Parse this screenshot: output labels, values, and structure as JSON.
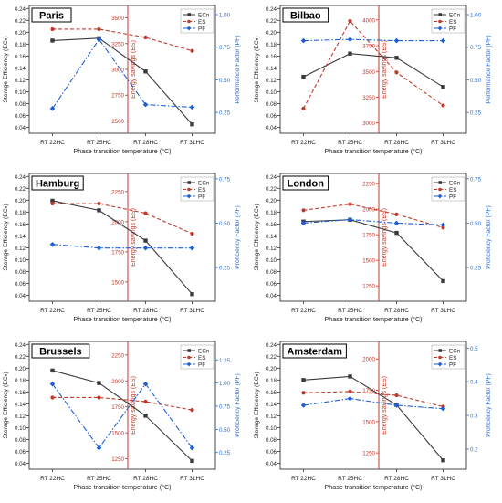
{
  "figure": {
    "colors": {
      "ecn": "#3a3a3a",
      "es": "#c0392b",
      "pf": "#1f5fd6",
      "axis_es": "#c0392b",
      "axis_pf": "#2f6fd0",
      "divider": "#c0392b"
    },
    "left_axis_label": "Storage Efficiency (ECₙ)",
    "x_axis_label": "Phase transition temperature (°C)",
    "es_axis_label": "Energy savings (ES)",
    "legend": [
      "ECn",
      "ES",
      "PF"
    ]
  },
  "chart_data": [
    {
      "type": "line",
      "title": "Paris",
      "categories": [
        "RT 22HC",
        "RT 25HC",
        "RT 28HC",
        "RT 31HC"
      ],
      "xlabel": "Phase transition temperature (°C)",
      "ylabel": "Storage Efficiency (ECₙ)",
      "y2label": "Energy savings (ES)",
      "y3label": "Performance Factor (PF)",
      "ylim": [
        0.03,
        0.245
      ],
      "yticks": [
        "0.04",
        "0.06",
        "0.08",
        "0.10",
        "0.12",
        "0.14",
        "0.16",
        "0.18",
        "0.20",
        "0.22",
        "0.24"
      ],
      "y2lim": [
        2380,
        3620
      ],
      "y2ticks": [
        "2500",
        "2750",
        "3000",
        "3250",
        "3500"
      ],
      "y3lim": [
        0.09,
        1.07
      ],
      "y3ticks": [
        "0.25",
        "0.50",
        "0.75",
        "1.00"
      ],
      "legend_position": "top-right",
      "series": [
        {
          "name": "ECn",
          "axis": "left",
          "values": [
            0.186,
            0.19,
            0.134,
            0.045
          ]
        },
        {
          "name": "ES",
          "axis": "middle",
          "values": [
            3390,
            3390,
            3310,
            3180
          ]
        },
        {
          "name": "PF",
          "axis": "right",
          "values": [
            0.28,
            0.81,
            0.31,
            0.29
          ]
        }
      ]
    },
    {
      "type": "line",
      "title": "Bilbao",
      "categories": [
        "RT 22HC",
        "RT 25HC",
        "RT 28HC",
        "RT 31HC"
      ],
      "xlabel": "Phase transition temperature (°C)",
      "ylabel": "Storage Efficiency (ECₙ)",
      "y2label": "Energy savings (ES)",
      "y3label": "Performance Factor (PF)",
      "ylim": [
        0.03,
        0.245
      ],
      "yticks": [
        "0.04",
        "0.06",
        "0.08",
        "0.10",
        "0.12",
        "0.14",
        "0.16",
        "0.18",
        "0.20",
        "0.22",
        "0.24"
      ],
      "y2lim": [
        2900,
        4140
      ],
      "y2ticks": [
        "3000",
        "3250",
        "3500",
        "3750",
        "4000"
      ],
      "y3lim": [
        0.09,
        1.07
      ],
      "y3ticks": [
        "0.25",
        "0.50",
        "0.75",
        "1.00"
      ],
      "legend_position": "top-right",
      "series": [
        {
          "name": "ECn",
          "axis": "left",
          "values": [
            0.125,
            0.164,
            0.157,
            0.108
          ]
        },
        {
          "name": "ES",
          "axis": "middle",
          "values": [
            3140,
            3990,
            3490,
            3170
          ]
        },
        {
          "name": "PF",
          "axis": "right",
          "values": [
            0.8,
            0.81,
            0.8,
            0.8
          ]
        }
      ]
    },
    {
      "type": "line",
      "title": "Hamburg",
      "categories": [
        "RT 22HC",
        "RT 25HC",
        "RT 28HC",
        "RT 31HC"
      ],
      "xlabel": "Phase transition temperature (°C)",
      "ylabel": "Storage Efficiency (ECₙ)",
      "y2label": "Energy savings (ES)",
      "y3label": "Proficiency Factor (PF)",
      "ylim": [
        0.03,
        0.245
      ],
      "yticks": [
        "0.04",
        "0.06",
        "0.08",
        "0.10",
        "0.12",
        "0.14",
        "0.16",
        "0.18",
        "0.20",
        "0.22",
        "0.24"
      ],
      "y2lim": [
        1340,
        2400
      ],
      "y2ticks": [
        "1500",
        "1750",
        "2000",
        "2250"
      ],
      "y3lim": [
        0.06,
        0.78
      ],
      "y3ticks": [
        "0.25",
        "0.50",
        "0.75"
      ],
      "legend_position": "top-right",
      "series": [
        {
          "name": "ECn",
          "axis": "left",
          "values": [
            0.199,
            0.183,
            0.132,
            0.042
          ]
        },
        {
          "name": "ES",
          "axis": "middle",
          "values": [
            2150,
            2150,
            2070,
            1900
          ]
        },
        {
          "name": "PF",
          "axis": "right",
          "values": [
            0.38,
            0.36,
            0.36,
            0.36
          ]
        }
      ]
    },
    {
      "type": "line",
      "title": "London",
      "categories": [
        "RT 22HC",
        "RT 25HC",
        "RT 28HC",
        "RT 31HC"
      ],
      "xlabel": "Phase transition temperature (°C)",
      "ylabel": "Storage Efficiency (ECₙ)",
      "y2label": "Energy savings (ES)",
      "y3label": "Proficiency Factor (PF)",
      "ylim": [
        0.03,
        0.245
      ],
      "yticks": [
        "0.04",
        "0.06",
        "0.08",
        "0.10",
        "0.12",
        "0.14",
        "0.16",
        "0.18",
        "0.20",
        "0.22",
        "0.24"
      ],
      "y2lim": [
        1100,
        2350
      ],
      "y2ticks": [
        "1250",
        "1500",
        "1750",
        "2000",
        "2250"
      ],
      "y3lim": [
        0.06,
        0.78
      ],
      "y3ticks": [
        "0.25",
        "0.50",
        "0.75"
      ],
      "legend_position": "top-right",
      "series": [
        {
          "name": "ECn",
          "axis": "left",
          "values": [
            0.164,
            0.167,
            0.145,
            0.064
          ]
        },
        {
          "name": "ES",
          "axis": "middle",
          "values": [
            1990,
            2050,
            1950,
            1820
          ]
        },
        {
          "name": "PF",
          "axis": "right",
          "values": [
            0.5,
            0.52,
            0.5,
            0.49
          ]
        }
      ]
    },
    {
      "type": "line",
      "title": "Brussels",
      "categories": [
        "RT 22HC",
        "RT 25HC",
        "RT 28HC",
        "RT 31HC"
      ],
      "xlabel": "Phase transition temperature (°C)",
      "ylabel": "Storage Efficiency (ECₙ)",
      "y2label": "Energy savings (ES)",
      "y3label": "Proficiency Factor (PF)",
      "ylim": [
        0.03,
        0.245
      ],
      "yticks": [
        "0.04",
        "0.06",
        "0.08",
        "0.10",
        "0.12",
        "0.14",
        "0.16",
        "0.18",
        "0.20",
        "0.22",
        "0.24"
      ],
      "y2lim": [
        1150,
        2380
      ],
      "y2ticks": [
        "1250",
        "1500",
        "1750",
        "2000",
        "2250"
      ],
      "y3lim": [
        0.07,
        1.45
      ],
      "y3ticks": [
        "0.25",
        "0.50",
        "0.75",
        "1.00",
        "1.25"
      ],
      "legend_position": "top-right",
      "series": [
        {
          "name": "ECn",
          "axis": "left",
          "values": [
            0.196,
            0.175,
            0.12,
            0.044
          ]
        },
        {
          "name": "ES",
          "axis": "middle",
          "values": [
            1840,
            1840,
            1800,
            1720
          ]
        },
        {
          "name": "PF",
          "axis": "right",
          "values": [
            0.99,
            0.3,
            0.99,
            0.3
          ]
        }
      ]
    },
    {
      "type": "line",
      "title": "Amsterdam",
      "categories": [
        "RT 22HC",
        "RT 25HC",
        "RT 28HC",
        "RT 31HC"
      ],
      "xlabel": "Phase transition temperature (°C)",
      "ylabel": "Storage Efficiency (ECₙ)",
      "y2label": "Energy savings (ES)",
      "y3label": "Proficiency Factor (PF)",
      "ylim": [
        0.03,
        0.245
      ],
      "yticks": [
        "0.04",
        "0.06",
        "0.08",
        "0.10",
        "0.12",
        "0.14",
        "0.16",
        "0.18",
        "0.20",
        "0.22",
        "0.24"
      ],
      "y2lim": [
        1120,
        2140
      ],
      "y2ticks": [
        "1250",
        "1500",
        "1750",
        "2000"
      ],
      "y3lim": [
        0.14,
        0.52
      ],
      "y3ticks": [
        "0.2",
        "0.3",
        "0.4",
        "0.5"
      ],
      "legend_position": "top-right",
      "series": [
        {
          "name": "ECn",
          "axis": "left",
          "values": [
            0.18,
            0.186,
            0.138,
            0.045
          ]
        },
        {
          "name": "ES",
          "axis": "middle",
          "values": [
            1730,
            1740,
            1710,
            1620
          ]
        },
        {
          "name": "PF",
          "axis": "right",
          "values": [
            0.33,
            0.35,
            0.33,
            0.32
          ]
        }
      ]
    }
  ]
}
